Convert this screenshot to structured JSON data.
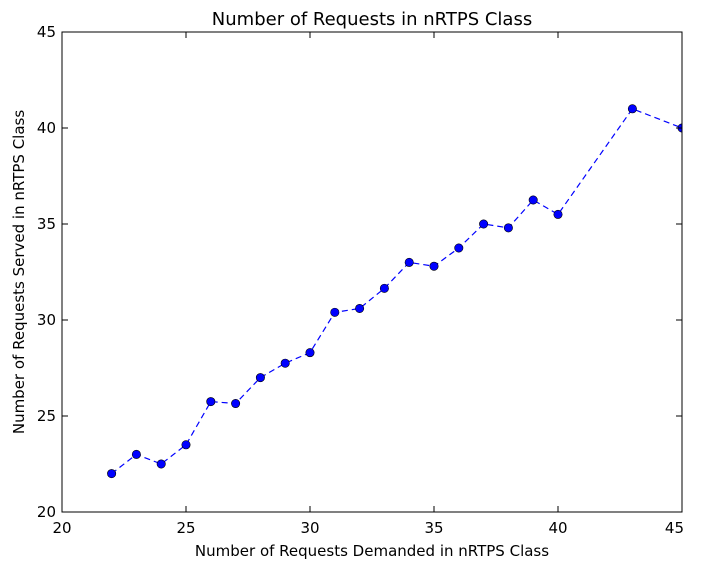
{
  "chart_data": {
    "type": "line",
    "title": "Number of Requests in nRTPS Class",
    "xlabel": "Number of Requests Demanded in nRTPS Class",
    "ylabel": "Number of Requests Served in nRTPS Class",
    "xlim": [
      20,
      45
    ],
    "ylim": [
      20,
      45
    ],
    "xticks": [
      20,
      25,
      30,
      35,
      40,
      45
    ],
    "yticks": [
      20,
      25,
      30,
      35,
      40,
      45
    ],
    "grid": false,
    "line_style": "dashed",
    "marker": "circle",
    "color": "#0000ff",
    "series": [
      {
        "x": [
          22,
          23,
          24,
          25,
          26,
          27,
          28,
          29,
          30,
          31,
          32,
          33,
          34,
          35,
          36,
          37,
          38,
          39,
          40,
          43,
          45
        ],
        "y": [
          22.0,
          23.0,
          22.5,
          23.5,
          25.75,
          25.65,
          27.0,
          27.75,
          28.3,
          30.4,
          30.6,
          31.65,
          33.0,
          32.8,
          33.75,
          35.0,
          34.8,
          36.25,
          35.5,
          41.0,
          40.0
        ]
      }
    ]
  }
}
